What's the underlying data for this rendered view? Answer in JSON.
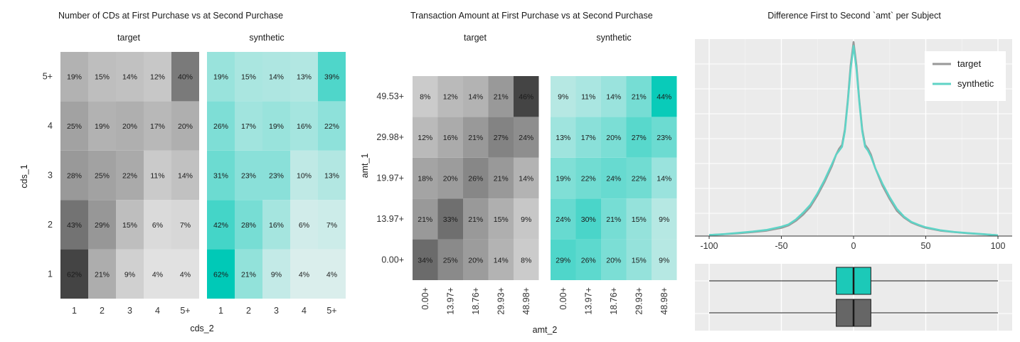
{
  "colors": {
    "target": "#999999",
    "synthetic": "#5fd3c6",
    "target_box": "#666666",
    "synthetic_box": "#1cc9b8",
    "panel_bg": "#ebebeb"
  },
  "chart_data": [
    {
      "type": "heatmap",
      "title": "Number of CDs at First Purchase vs at Second Purchase",
      "xlabel": "cds_2",
      "ylabel": "cds_1",
      "x_categories": [
        "1",
        "2",
        "3",
        "4",
        "5+"
      ],
      "y_categories": [
        "1",
        "2",
        "3",
        "4",
        "5+"
      ],
      "facets": [
        {
          "name": "target",
          "color": "#444444",
          "cells": [
            [
              "62%",
              "21%",
              "9%",
              "4%",
              "4%"
            ],
            [
              "43%",
              "29%",
              "15%",
              "6%",
              "7%"
            ],
            [
              "28%",
              "25%",
              "22%",
              "11%",
              "14%"
            ],
            [
              "25%",
              "19%",
              "20%",
              "17%",
              "20%"
            ],
            [
              "19%",
              "15%",
              "14%",
              "12%",
              "40%"
            ]
          ]
        },
        {
          "name": "synthetic",
          "color": "#00c9b7",
          "cells": [
            [
              "62%",
              "21%",
              "9%",
              "4%",
              "4%"
            ],
            [
              "42%",
              "28%",
              "16%",
              "6%",
              "7%"
            ],
            [
              "31%",
              "23%",
              "23%",
              "10%",
              "13%"
            ],
            [
              "26%",
              "17%",
              "19%",
              "16%",
              "22%"
            ],
            [
              "19%",
              "15%",
              "14%",
              "13%",
              "39%"
            ]
          ]
        }
      ]
    },
    {
      "type": "heatmap",
      "title": "Transaction Amount at First Purchase vs at Second Purchase",
      "xlabel": "amt_2",
      "ylabel": "amt_1",
      "x_categories": [
        "0.00+",
        "13.97+",
        "18.76+",
        "29.93+",
        "48.98+"
      ],
      "y_categories": [
        "0.00+",
        "13.97+",
        "19.97+",
        "29.98+",
        "49.53+"
      ],
      "facets": [
        {
          "name": "target",
          "color": "#444444",
          "cells": [
            [
              "34%",
              "25%",
              "20%",
              "14%",
              "8%"
            ],
            [
              "21%",
              "33%",
              "21%",
              "15%",
              "9%"
            ],
            [
              "18%",
              "20%",
              "26%",
              "21%",
              "14%"
            ],
            [
              "12%",
              "16%",
              "21%",
              "27%",
              "24%"
            ],
            [
              "8%",
              "12%",
              "14%",
              "21%",
              "46%"
            ]
          ]
        },
        {
          "name": "synthetic",
          "color": "#00c9b7",
          "cells": [
            [
              "29%",
              "26%",
              "20%",
              "15%",
              "9%"
            ],
            [
              "24%",
              "30%",
              "21%",
              "15%",
              "9%"
            ],
            [
              "19%",
              "22%",
              "24%",
              "22%",
              "14%"
            ],
            [
              "13%",
              "17%",
              "20%",
              "27%",
              "23%"
            ],
            [
              "9%",
              "11%",
              "14%",
              "21%",
              "44%"
            ]
          ]
        }
      ]
    },
    {
      "type": "line",
      "title": "Difference First to Second `amt` per Subject",
      "xlim": [
        -100,
        100
      ],
      "x_ticks": [
        "-100",
        "-50",
        "0",
        "50",
        "100"
      ],
      "grid": true,
      "legend": "top-right",
      "series": [
        {
          "name": "target",
          "points": [
            [
              -100,
              0.5
            ],
            [
              -90,
              0.9
            ],
            [
              -80,
              1.4
            ],
            [
              -70,
              2.0
            ],
            [
              -60,
              2.8
            ],
            [
              -50,
              4.2
            ],
            [
              -45,
              5.5
            ],
            [
              -40,
              7.8
            ],
            [
              -35,
              11
            ],
            [
              -30,
              15
            ],
            [
              -25,
              21
            ],
            [
              -20,
              28
            ],
            [
              -15,
              36
            ],
            [
              -12,
              42
            ],
            [
              -10,
              45
            ],
            [
              -8,
              47
            ],
            [
              -6,
              55
            ],
            [
              -4,
              70
            ],
            [
              -2,
              88
            ],
            [
              0,
              100
            ],
            [
              2,
              88
            ],
            [
              4,
              70
            ],
            [
              6,
              55
            ],
            [
              8,
              47
            ],
            [
              10,
              45
            ],
            [
              12,
              42
            ],
            [
              15,
              35
            ],
            [
              20,
              26
            ],
            [
              25,
              19
            ],
            [
              30,
              13
            ],
            [
              35,
              9.5
            ],
            [
              40,
              7
            ],
            [
              45,
              5.5
            ],
            [
              50,
              4.2
            ],
            [
              60,
              2.8
            ],
            [
              70,
              2.0
            ],
            [
              80,
              1.4
            ],
            [
              90,
              0.9
            ],
            [
              100,
              0.4
            ]
          ]
        },
        {
          "name": "synthetic",
          "points": [
            [
              -100,
              0.5
            ],
            [
              -90,
              1.0
            ],
            [
              -80,
              1.6
            ],
            [
              -70,
              2.3
            ],
            [
              -60,
              3.2
            ],
            [
              -50,
              4.8
            ],
            [
              -45,
              6
            ],
            [
              -40,
              8.5
            ],
            [
              -35,
              12
            ],
            [
              -30,
              16
            ],
            [
              -25,
              22
            ],
            [
              -20,
              29
            ],
            [
              -15,
              37
            ],
            [
              -12,
              42
            ],
            [
              -10,
              44
            ],
            [
              -8,
              46
            ],
            [
              -6,
              54
            ],
            [
              -4,
              69
            ],
            [
              -2,
              86
            ],
            [
              0,
              98
            ],
            [
              2,
              86
            ],
            [
              4,
              69
            ],
            [
              6,
              54
            ],
            [
              8,
              46
            ],
            [
              10,
              44
            ],
            [
              12,
              41
            ],
            [
              15,
              35
            ],
            [
              20,
              27
            ],
            [
              25,
              20
            ],
            [
              30,
              14
            ],
            [
              35,
              10
            ],
            [
              40,
              7.3
            ],
            [
              45,
              5.8
            ],
            [
              50,
              4.5
            ],
            [
              60,
              3.0
            ],
            [
              70,
              2.1
            ],
            [
              80,
              1.5
            ],
            [
              90,
              1.0
            ],
            [
              100,
              0.4
            ]
          ]
        }
      ],
      "boxplots": [
        {
          "name": "synthetic",
          "min": -100,
          "q1": -12,
          "median": 0,
          "q3": 12,
          "max": 100
        },
        {
          "name": "target",
          "min": -100,
          "q1": -12,
          "median": 0,
          "q3": 12,
          "max": 100
        }
      ]
    }
  ]
}
